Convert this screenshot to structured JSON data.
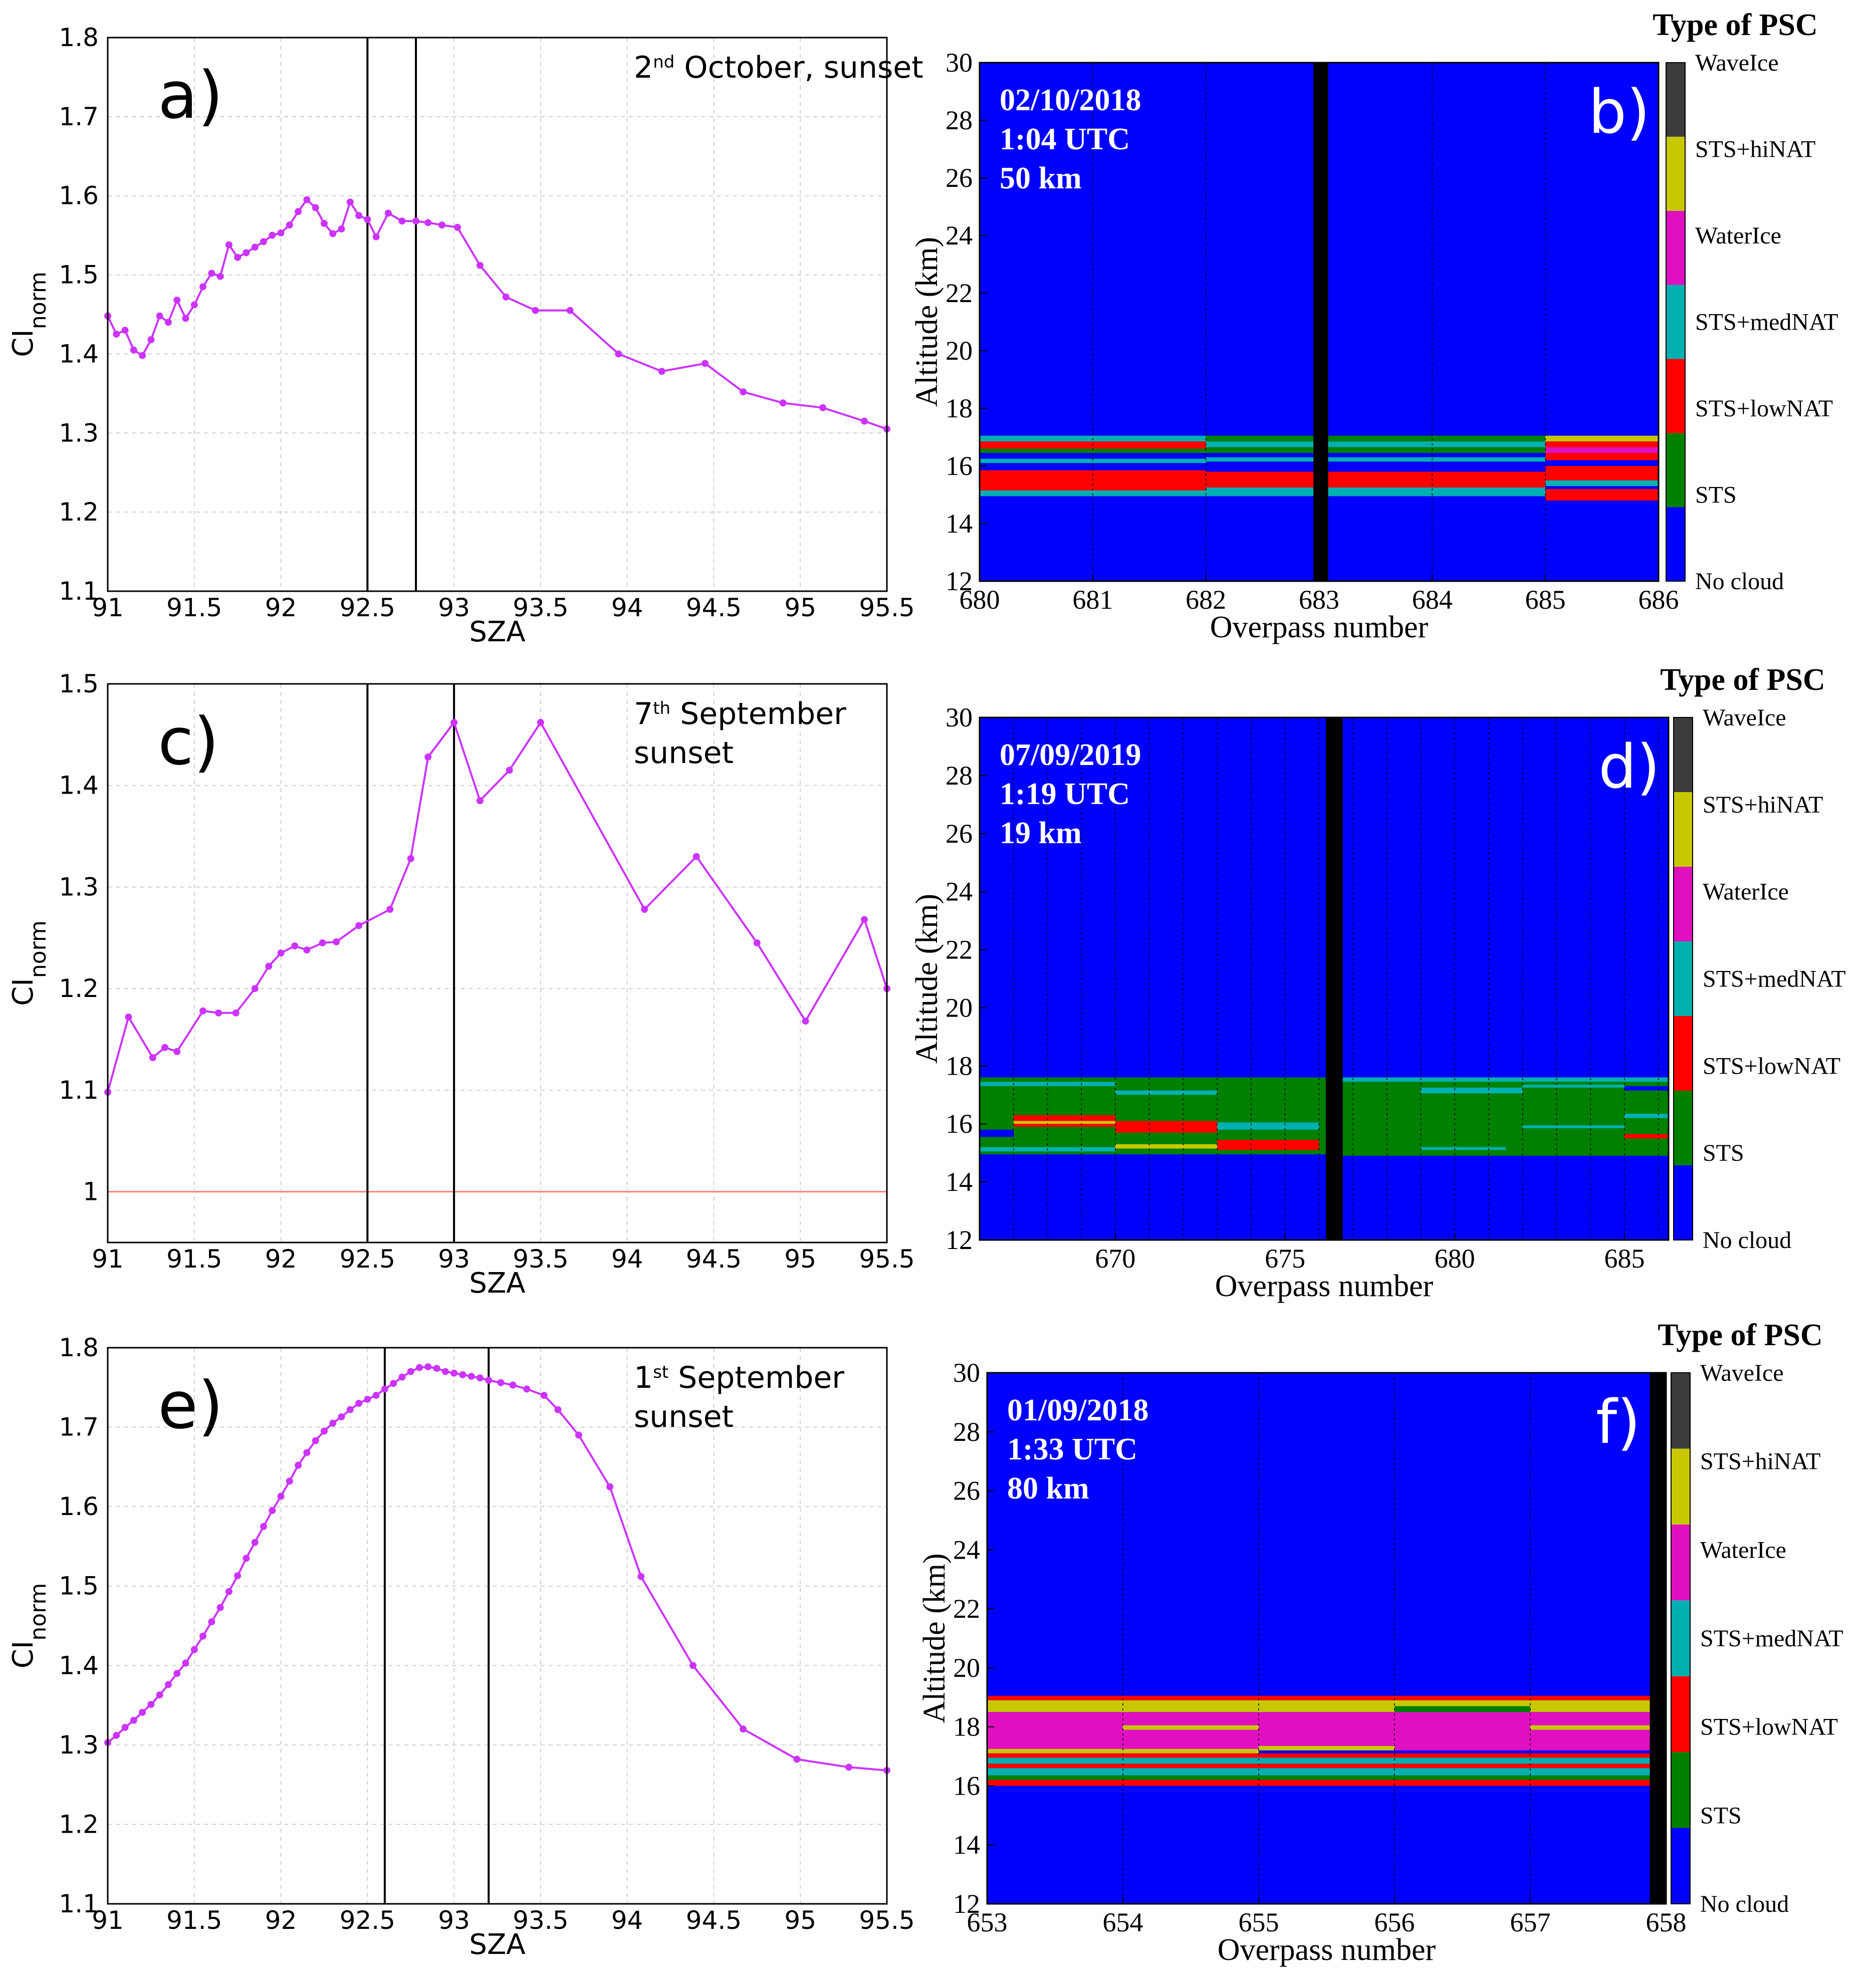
{
  "chart_data": [
    {
      "panel": "a)",
      "type": "line",
      "annotation": {
        "day": "2",
        "sup": "nd",
        "rest": " October, sunset"
      },
      "xlabel": "SZA",
      "ylabel": "CI",
      "ylabel_sub": "norm",
      "xlim": [
        91,
        95.5
      ],
      "ylim": [
        1.1,
        1.8
      ],
      "xticks": [
        "91",
        "91.5",
        "92",
        "92.5",
        "93",
        "93.5",
        "94",
        "94.5",
        "95",
        "95.5"
      ],
      "yticks": [
        "1.1",
        "1.2",
        "1.3",
        "1.4",
        "1.5",
        "1.6",
        "1.7",
        "1.8"
      ],
      "vlines": [
        92.5,
        92.78
      ],
      "hline": null,
      "series": [
        {
          "name": "CI_norm",
          "color": "#cc33ff",
          "x": [
            91,
            91.05,
            91.1,
            91.15,
            91.2,
            91.25,
            91.3,
            91.35,
            91.4,
            91.45,
            91.5,
            91.55,
            91.6,
            91.65,
            91.7,
            91.75,
            91.8,
            91.85,
            91.9,
            91.95,
            92.0,
            92.05,
            92.1,
            92.15,
            92.2,
            92.25,
            92.3,
            92.35,
            92.4,
            92.45,
            92.5,
            92.55,
            92.62,
            92.7,
            92.78,
            92.85,
            92.93,
            93.02,
            93.15,
            93.3,
            93.47,
            93.67,
            93.95,
            94.2,
            94.45,
            94.67,
            94.9,
            95.13,
            95.37,
            95.5
          ],
          "y": [
            1.448,
            1.425,
            1.43,
            1.405,
            1.398,
            1.418,
            1.448,
            1.44,
            1.468,
            1.445,
            1.462,
            1.485,
            1.502,
            1.498,
            1.538,
            1.522,
            1.528,
            1.535,
            1.542,
            1.55,
            1.553,
            1.563,
            1.58,
            1.595,
            1.585,
            1.565,
            1.552,
            1.558,
            1.592,
            1.575,
            1.57,
            1.548,
            1.578,
            1.568,
            1.568,
            1.566,
            1.563,
            1.56,
            1.512,
            1.472,
            1.455,
            1.455,
            1.4,
            1.378,
            1.388,
            1.352,
            1.338,
            1.332,
            1.315,
            1.305
          ]
        }
      ]
    },
    {
      "panel": "c)",
      "type": "line",
      "annotation": {
        "day": "7",
        "sup": "th",
        "rest": " September",
        "line2": "sunset"
      },
      "xlabel": "SZA",
      "ylabel": "CI",
      "ylabel_sub": "norm",
      "xlim": [
        91,
        95.5
      ],
      "ylim": [
        0.95,
        1.5
      ],
      "xticks": [
        "91",
        "91.5",
        "92",
        "92.5",
        "93",
        "93.5",
        "94",
        "94.5",
        "95",
        "95.5"
      ],
      "yticks": [
        "1",
        "1.1",
        "1.2",
        "1.3",
        "1.4",
        "1.5"
      ],
      "vlines": [
        92.5,
        93.0
      ],
      "hline": 1.0,
      "series": [
        {
          "name": "CI_norm",
          "color": "#cc33ff",
          "x": [
            91,
            91.12,
            91.26,
            91.33,
            91.4,
            91.55,
            91.64,
            91.74,
            91.85,
            91.93,
            92.0,
            92.08,
            92.15,
            92.24,
            92.32,
            92.45,
            92.63,
            92.75,
            92.85,
            93.0,
            93.15,
            93.32,
            93.5,
            94.1,
            94.4,
            94.75,
            95.03,
            95.37,
            95.5
          ],
          "y": [
            1.098,
            1.172,
            1.132,
            1.142,
            1.138,
            1.178,
            1.176,
            1.176,
            1.2,
            1.222,
            1.235,
            1.242,
            1.238,
            1.245,
            1.246,
            1.262,
            1.278,
            1.328,
            1.428,
            1.462,
            1.385,
            1.415,
            1.462,
            1.278,
            1.33,
            1.245,
            1.168,
            1.268,
            1.2
          ]
        }
      ]
    },
    {
      "panel": "e)",
      "type": "line",
      "annotation": {
        "day": "1",
        "sup": "st",
        "rest": " September",
        "line2": "sunset"
      },
      "xlabel": "SZA",
      "ylabel": "CI",
      "ylabel_sub": "norm",
      "xlim": [
        91,
        95.5
      ],
      "ylim": [
        1.1,
        1.8
      ],
      "xticks": [
        "91",
        "91.5",
        "92",
        "92.5",
        "93",
        "93.5",
        "94",
        "94.5",
        "95",
        "95.5"
      ],
      "yticks": [
        "1.1",
        "1.2",
        "1.3",
        "1.4",
        "1.5",
        "1.6",
        "1.7",
        "1.8"
      ],
      "vlines": [
        92.6,
        93.2
      ],
      "hline": null,
      "series": [
        {
          "name": "CI_norm",
          "color": "#cc33ff",
          "x": [
            91,
            91.05,
            91.1,
            91.15,
            91.2,
            91.25,
            91.3,
            91.35,
            91.4,
            91.45,
            91.5,
            91.55,
            91.6,
            91.65,
            91.7,
            91.75,
            91.8,
            91.85,
            91.9,
            91.95,
            92.0,
            92.05,
            92.1,
            92.15,
            92.2,
            92.25,
            92.3,
            92.35,
            92.4,
            92.45,
            92.5,
            92.55,
            92.6,
            92.65,
            92.7,
            92.75,
            92.8,
            92.85,
            92.9,
            92.95,
            93.0,
            93.05,
            93.1,
            93.15,
            93.2,
            93.27,
            93.34,
            93.42,
            93.52,
            93.6,
            93.72,
            93.9,
            94.08,
            94.38,
            94.67,
            94.98,
            95.28,
            95.5
          ],
          "y": [
            1.303,
            1.312,
            1.322,
            1.331,
            1.341,
            1.351,
            1.363,
            1.376,
            1.39,
            1.403,
            1.42,
            1.437,
            1.455,
            1.473,
            1.493,
            1.513,
            1.535,
            1.555,
            1.575,
            1.595,
            1.613,
            1.632,
            1.652,
            1.668,
            1.683,
            1.695,
            1.705,
            1.713,
            1.722,
            1.73,
            1.735,
            1.74,
            1.748,
            1.755,
            1.763,
            1.77,
            1.775,
            1.776,
            1.774,
            1.77,
            1.768,
            1.766,
            1.764,
            1.762,
            1.759,
            1.756,
            1.753,
            1.748,
            1.74,
            1.722,
            1.69,
            1.625,
            1.512,
            1.4,
            1.32,
            1.282,
            1.272,
            1.268
          ]
        }
      ]
    },
    {
      "panel": "b)",
      "type": "heatmap",
      "stamp": [
        "02/10/2018",
        "1:04 UTC",
        "50 km"
      ],
      "xlabel": "Overpass number",
      "ylabel": "Altitude (km)",
      "xlim": [
        680,
        686
      ],
      "ylim": [
        12,
        30
      ],
      "xticks": [
        680,
        681,
        682,
        683,
        684,
        685,
        686
      ],
      "yticks": [
        12,
        14,
        16,
        18,
        20,
        22,
        24,
        26,
        28,
        30
      ],
      "dashed_x": [
        681,
        682,
        683,
        684,
        685
      ],
      "black_band": [
        682.95,
        683.08
      ],
      "layers": [
        {
          "x0": 680,
          "x1": 682,
          "y0": 16.85,
          "y1": 17.05,
          "cls": "STS+medNAT"
        },
        {
          "x0": 680,
          "x1": 682,
          "y0": 16.6,
          "y1": 16.85,
          "cls": "STS+lowNAT"
        },
        {
          "x0": 680,
          "x1": 682,
          "y0": 16.45,
          "y1": 16.6,
          "cls": "STS"
        },
        {
          "x0": 680,
          "x1": 682,
          "y0": 16.1,
          "y1": 16.25,
          "cls": "STS+medNAT"
        },
        {
          "x0": 680,
          "x1": 682,
          "y0": 15.15,
          "y1": 15.85,
          "cls": "STS+lowNAT"
        },
        {
          "x0": 680,
          "x1": 682,
          "y0": 14.95,
          "y1": 15.15,
          "cls": "STS+medNAT"
        },
        {
          "x0": 682,
          "x1": 685,
          "y0": 16.85,
          "y1": 17.05,
          "cls": "STS"
        },
        {
          "x0": 682,
          "x1": 685,
          "y0": 16.65,
          "y1": 16.85,
          "cls": "STS+medNAT"
        },
        {
          "x0": 682,
          "x1": 685,
          "y0": 16.45,
          "y1": 16.65,
          "cls": "STS"
        },
        {
          "x0": 682,
          "x1": 685,
          "y0": 16.15,
          "y1": 16.3,
          "cls": "STS+medNAT"
        },
        {
          "x0": 682,
          "x1": 685,
          "y0": 15.25,
          "y1": 15.8,
          "cls": "STS+lowNAT"
        },
        {
          "x0": 682,
          "x1": 685,
          "y0": 14.95,
          "y1": 15.25,
          "cls": "STS+medNAT"
        },
        {
          "x0": 685,
          "x1": 686,
          "y0": 16.85,
          "y1": 17.05,
          "cls": "STS+hiNAT"
        },
        {
          "x0": 685,
          "x1": 686,
          "y0": 16.65,
          "y1": 16.85,
          "cls": "STS+lowNAT"
        },
        {
          "x0": 685,
          "x1": 686,
          "y0": 16.45,
          "y1": 16.65,
          "cls": "WaterIce"
        },
        {
          "x0": 685,
          "x1": 686,
          "y0": 16.2,
          "y1": 16.45,
          "cls": "STS+lowNAT"
        },
        {
          "x0": 685,
          "x1": 686,
          "y0": 15.5,
          "y1": 16.0,
          "cls": "STS+lowNAT"
        },
        {
          "x0": 685,
          "x1": 686,
          "y0": 15.3,
          "y1": 15.5,
          "cls": "STS+medNAT"
        },
        {
          "x0": 685,
          "x1": 686,
          "y0": 14.8,
          "y1": 15.2,
          "cls": "STS+lowNAT"
        }
      ]
    },
    {
      "panel": "d)",
      "type": "heatmap",
      "stamp": [
        "07/09/2019",
        "1:19 UTC",
        "19 km"
      ],
      "xlabel": "Overpass number",
      "ylabel": "Altitude (km)",
      "xlim": [
        666,
        686.3
      ],
      "ylim": [
        12,
        30
      ],
      "xticks": [
        670,
        675,
        680,
        685
      ],
      "yticks": [
        12,
        14,
        16,
        18,
        20,
        22,
        24,
        26,
        28,
        30
      ],
      "dashed_x": [
        667,
        668,
        669,
        670,
        671,
        672,
        673,
        674,
        675,
        676,
        677,
        678,
        679,
        680,
        681,
        682,
        683,
        684,
        685,
        686
      ],
      "black_band": [
        676.2,
        676.7
      ],
      "layers": [
        {
          "x0": 666,
          "x1": 676.2,
          "y0": 14.95,
          "y1": 17.6,
          "cls": "STS"
        },
        {
          "x0": 676.7,
          "x1": 686.3,
          "y0": 14.9,
          "y1": 17.6,
          "cls": "STS"
        },
        {
          "x0": 666,
          "x1": 670,
          "y0": 17.3,
          "y1": 17.45,
          "cls": "STS+medNAT"
        },
        {
          "x0": 670,
          "x1": 673,
          "y0": 17.0,
          "y1": 17.15,
          "cls": "STS+medNAT"
        },
        {
          "x0": 667,
          "x1": 670,
          "y0": 15.9,
          "y1": 16.3,
          "cls": "STS+lowNAT"
        },
        {
          "x0": 667,
          "x1": 670,
          "y0": 16.0,
          "y1": 16.1,
          "cls": "STS+hiNAT"
        },
        {
          "x0": 670,
          "x1": 673,
          "y0": 15.7,
          "y1": 16.1,
          "cls": "STS+lowNAT"
        },
        {
          "x0": 673,
          "x1": 676,
          "y0": 15.1,
          "y1": 15.45,
          "cls": "STS+lowNAT"
        },
        {
          "x0": 673,
          "x1": 676,
          "y0": 15.8,
          "y1": 16.05,
          "cls": "STS+medNAT"
        },
        {
          "x0": 670,
          "x1": 673,
          "y0": 15.15,
          "y1": 15.3,
          "cls": "STS+hiNAT"
        },
        {
          "x0": 666,
          "x1": 670,
          "y0": 15.05,
          "y1": 15.2,
          "cls": "STS+medNAT"
        },
        {
          "x0": 666,
          "x1": 667,
          "y0": 15.55,
          "y1": 15.8,
          "cls": "No cloud"
        },
        {
          "x0": 676.7,
          "x1": 686.3,
          "y0": 17.45,
          "y1": 17.6,
          "cls": "STS+medNAT"
        },
        {
          "x0": 679,
          "x1": 682,
          "y0": 17.05,
          "y1": 17.25,
          "cls": "STS+medNAT"
        },
        {
          "x0": 682,
          "x1": 685,
          "y0": 17.25,
          "y1": 17.35,
          "cls": "STS+medNAT"
        },
        {
          "x0": 682,
          "x1": 685,
          "y0": 15.85,
          "y1": 15.95,
          "cls": "STS+medNAT"
        },
        {
          "x0": 679,
          "x1": 681.5,
          "y0": 15.1,
          "y1": 15.2,
          "cls": "STS+medNAT"
        },
        {
          "x0": 685,
          "x1": 686.3,
          "y0": 16.2,
          "y1": 16.35,
          "cls": "STS+medNAT"
        },
        {
          "x0": 685,
          "x1": 686.3,
          "y0": 15.5,
          "y1": 15.65,
          "cls": "STS+lowNAT"
        },
        {
          "x0": 685,
          "x1": 686.3,
          "y0": 17.15,
          "y1": 17.3,
          "cls": "No cloud"
        }
      ]
    },
    {
      "panel": "f)",
      "type": "heatmap",
      "stamp": [
        "01/09/2018",
        "1:33 UTC",
        "80 km"
      ],
      "xlabel": "Overpass number",
      "ylabel": "Altitude (km)",
      "xlim": [
        653,
        658
      ],
      "ylim": [
        12,
        30
      ],
      "xticks": [
        653,
        654,
        655,
        656,
        657,
        658
      ],
      "yticks": [
        12,
        14,
        16,
        18,
        20,
        22,
        24,
        26,
        28,
        30
      ],
      "dashed_x": [
        654,
        655,
        656,
        657
      ],
      "black_band": [
        657.88,
        658.0
      ],
      "layers": [
        {
          "x0": 653,
          "x1": 657.88,
          "y0": 18.9,
          "y1": 19.05,
          "cls": "STS+lowNAT"
        },
        {
          "x0": 653,
          "x1": 657.88,
          "y0": 18.5,
          "y1": 18.9,
          "cls": "STS+hiNAT"
        },
        {
          "x0": 653,
          "x1": 657.88,
          "y0": 17.2,
          "y1": 18.5,
          "cls": "WaterIce"
        },
        {
          "x0": 654,
          "x1": 655,
          "y0": 17.9,
          "y1": 18.05,
          "cls": "STS+hiNAT"
        },
        {
          "x0": 657,
          "x1": 657.88,
          "y0": 17.9,
          "y1": 18.05,
          "cls": "STS+hiNAT"
        },
        {
          "x0": 653,
          "x1": 655,
          "y0": 17.1,
          "y1": 17.25,
          "cls": "STS+hiNAT"
        },
        {
          "x0": 655,
          "x1": 656,
          "y0": 17.2,
          "y1": 17.35,
          "cls": "STS+hiNAT"
        },
        {
          "x0": 656,
          "x1": 657,
          "y0": 18.5,
          "y1": 18.7,
          "cls": "STS"
        },
        {
          "x0": 653,
          "x1": 657.88,
          "y0": 16.95,
          "y1": 17.1,
          "cls": "STS+lowNAT"
        },
        {
          "x0": 653,
          "x1": 657.88,
          "y0": 16.75,
          "y1": 16.95,
          "cls": "STS+medNAT"
        },
        {
          "x0": 653,
          "x1": 657.88,
          "y0": 16.6,
          "y1": 16.75,
          "cls": "STS+lowNAT"
        },
        {
          "x0": 653,
          "x1": 657.88,
          "y0": 16.35,
          "y1": 16.6,
          "cls": "STS+medNAT"
        },
        {
          "x0": 653,
          "x1": 657.88,
          "y0": 16.2,
          "y1": 16.35,
          "cls": "STS"
        },
        {
          "x0": 653,
          "x1": 657.88,
          "y0": 16.0,
          "y1": 16.2,
          "cls": "STS+lowNAT"
        }
      ]
    }
  ],
  "colorbar": {
    "title": "Type of PSC",
    "classes": [
      {
        "name": "No cloud",
        "color": "#0000ff"
      },
      {
        "name": "STS",
        "color": "#008000"
      },
      {
        "name": "STS+lowNAT",
        "color": "#ff0000"
      },
      {
        "name": "STS+medNAT",
        "color": "#00b0b0"
      },
      {
        "name": "WaterIce",
        "color": "#e010c0"
      },
      {
        "name": "STS+hiNAT",
        "color": "#c8c800"
      },
      {
        "name": "WaveIce",
        "color": "#3c3c3c"
      }
    ],
    "labels": [
      "No cloud",
      "STS",
      "STS+lowNAT",
      "STS+medNAT",
      "WaterIce",
      "STS+hiNAT",
      "WaveIce"
    ]
  },
  "colors": {
    "line": "#cc33ff",
    "hline": "#ff8080",
    "grid": "#d0d0d0"
  }
}
